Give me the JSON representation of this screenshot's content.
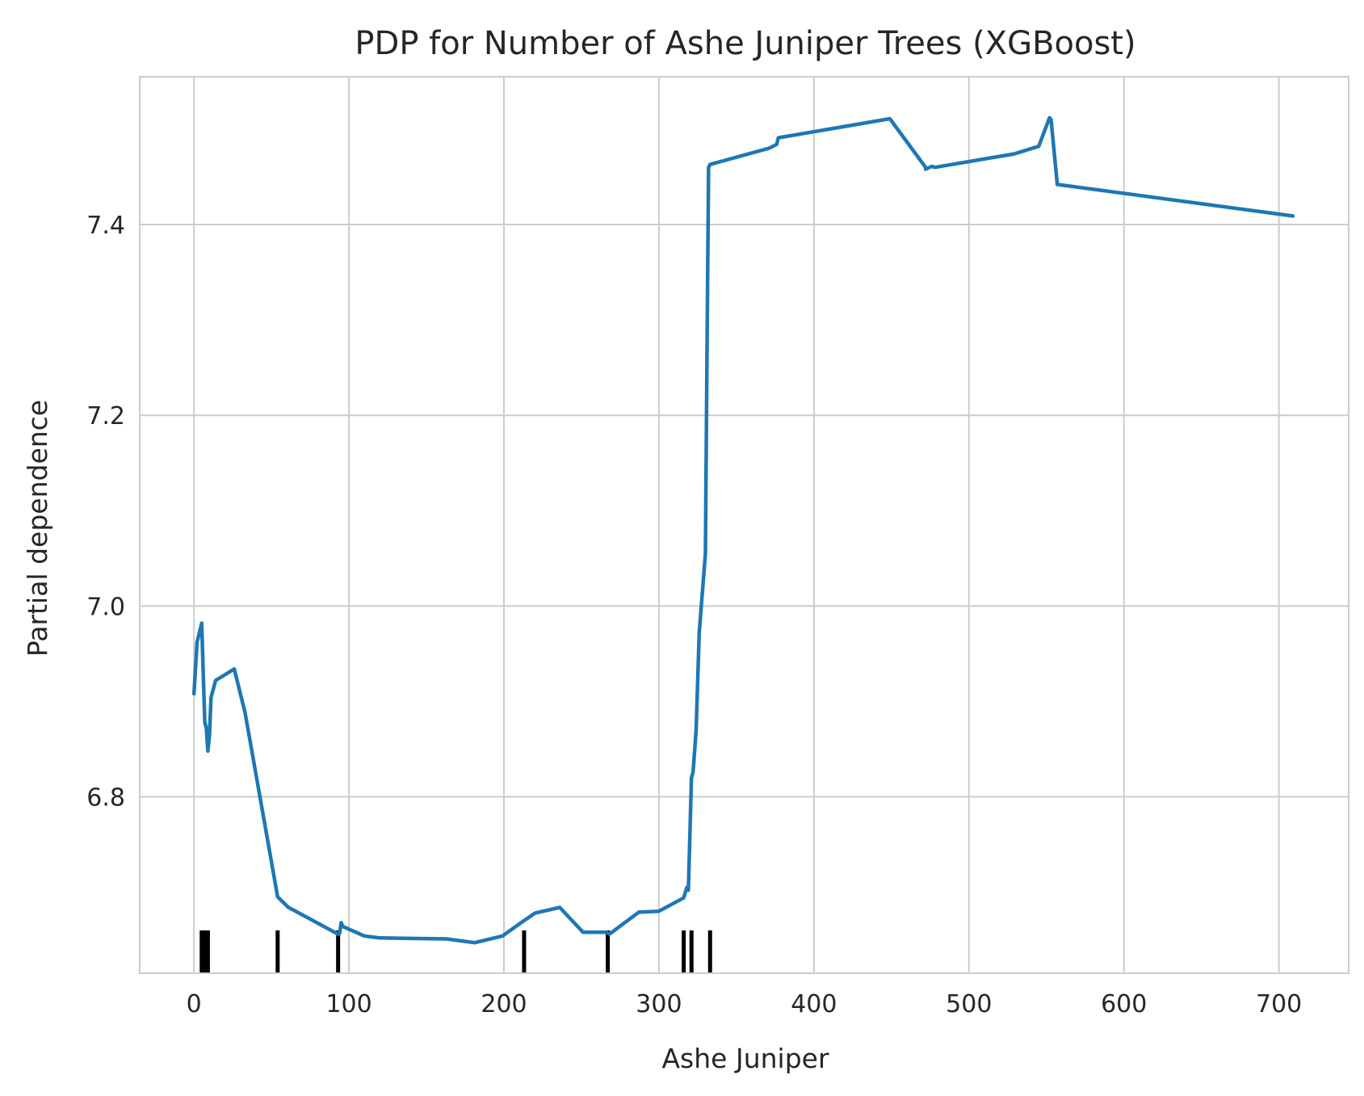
{
  "chart_data": {
    "type": "line",
    "title": "PDP for Number of Ashe Juniper Trees (XGBoost)",
    "xlabel": "Ashe Juniper",
    "ylabel": "Partial dependence",
    "xlim": [
      -35,
      745
    ],
    "ylim": [
      6.615,
      7.555
    ],
    "xticks": [
      0,
      100,
      200,
      300,
      400,
      500,
      600,
      700
    ],
    "xtick_labels": [
      "0",
      "100",
      "200",
      "300",
      "400",
      "500",
      "600",
      "700"
    ],
    "yticks": [
      6.8,
      7.0,
      7.2,
      7.4
    ],
    "ytick_labels": [
      "6.8",
      "7.0",
      "7.2",
      "7.4"
    ],
    "grid": true,
    "series": [
      {
        "color": "#1f77b4",
        "x": [
          0,
          2,
          5,
          6,
          7,
          8,
          9,
          10,
          11,
          14,
          26,
          33,
          54,
          61,
          93,
          94,
          95,
          96,
          110,
          120,
          163,
          181,
          199,
          212,
          220,
          236,
          251,
          266,
          268,
          287,
          300,
          316,
          318,
          319,
          321,
          322,
          324,
          326,
          330,
          331,
          332,
          333,
          371,
          376,
          377,
          449,
          472,
          472,
          476,
          478,
          529,
          545,
          552,
          553,
          557,
          709
        ],
        "y": [
          6.908,
          6.962,
          6.982,
          6.928,
          6.878,
          6.872,
          6.848,
          6.865,
          6.904,
          6.922,
          6.934,
          6.888,
          6.695,
          6.684,
          6.656,
          6.657,
          6.668,
          6.664,
          6.654,
          6.652,
          6.651,
          6.647,
          6.654,
          6.669,
          6.678,
          6.684,
          6.658,
          6.658,
          6.656,
          6.679,
          6.68,
          6.694,
          6.705,
          6.702,
          6.82,
          6.826,
          6.87,
          6.972,
          7.055,
          7.26,
          7.46,
          7.463,
          7.48,
          7.484,
          7.491,
          7.511,
          7.46,
          7.458,
          7.461,
          7.46,
          7.474,
          7.482,
          7.512,
          7.51,
          7.442,
          7.409
        ]
      }
    ],
    "rug": [
      5,
      7,
      9,
      54,
      93,
      213,
      267,
      316,
      321,
      333
    ]
  }
}
